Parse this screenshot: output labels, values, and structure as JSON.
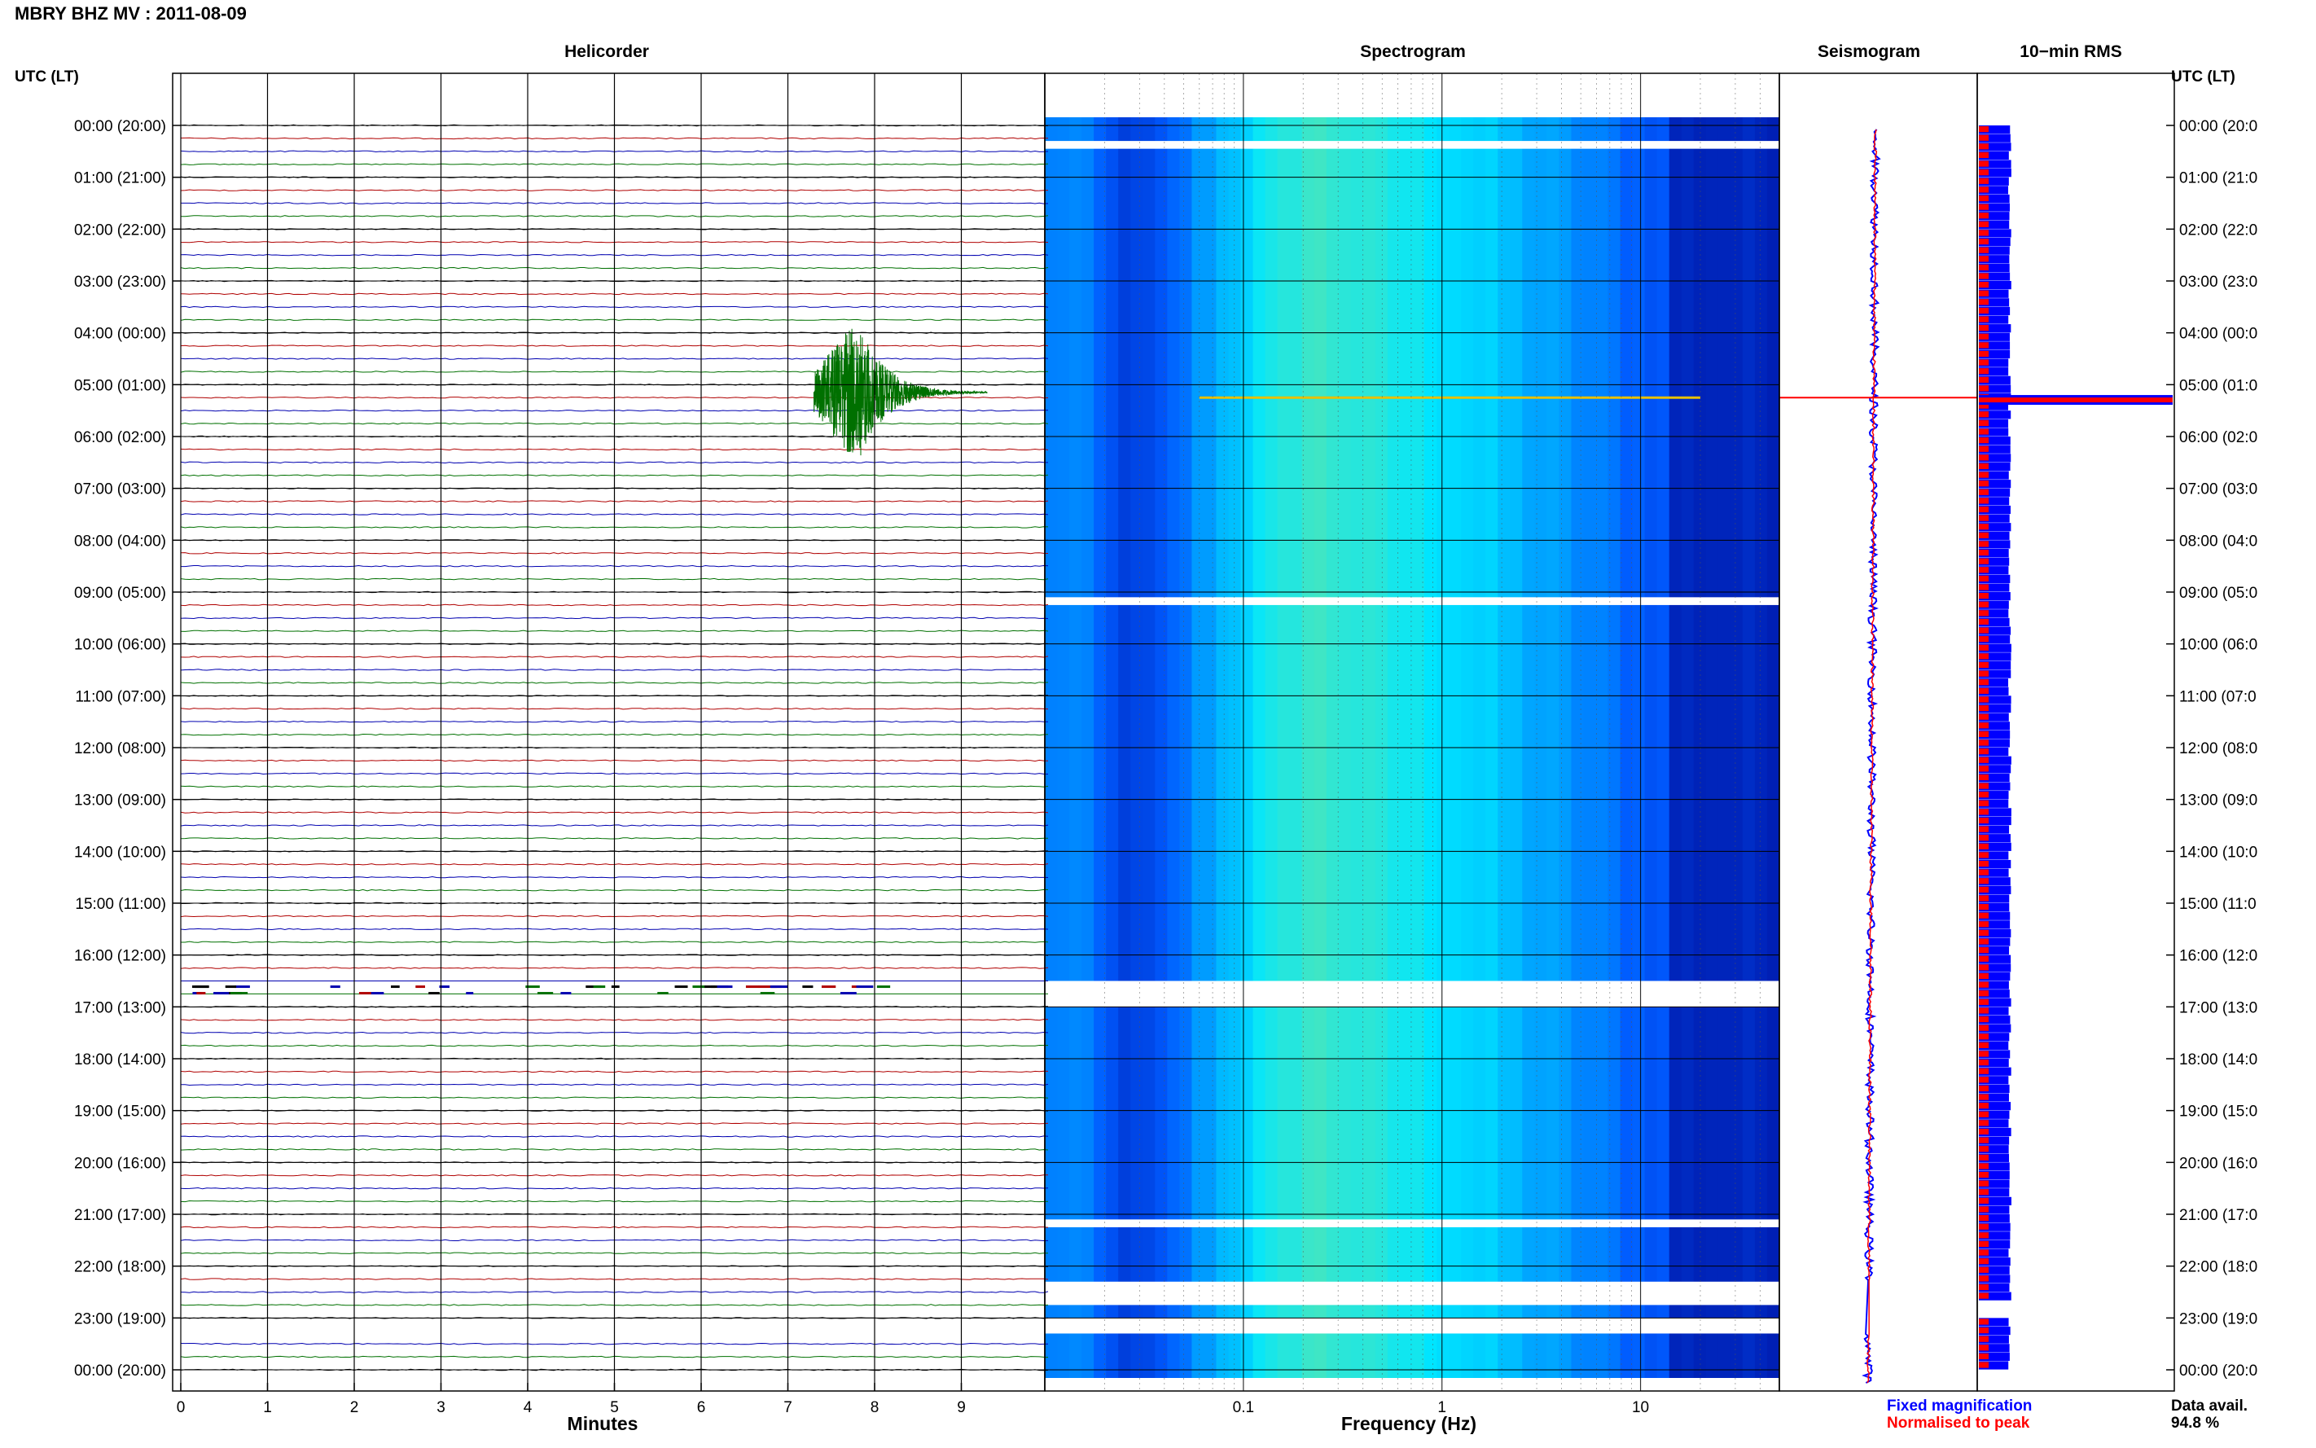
{
  "figure": {
    "title": "MBRY BHZ MV : 2011-08-09"
  },
  "panels": {
    "helicorder": "Helicorder",
    "spectrogram": "Spectrogram",
    "seismogram": "Seismogram",
    "rms": "10−min RMS"
  },
  "axes": {
    "left_header": "UTC (LT)",
    "right_header": "UTC (LT)",
    "helicorder_xlabel": "Minutes",
    "spectrogram_xlabel": "Frequency (Hz)"
  },
  "legend": {
    "fixed": "Fixed magnification",
    "normalised": "Normalised to peak",
    "fixed_color": "#0000ff",
    "normalised_color": "#ff0000"
  },
  "data_avail": {
    "label": "Data avail.",
    "value": "94.8 %"
  },
  "colors": {
    "trace_black": "#000000",
    "trace_red": "#b00000",
    "trace_blue": "#0000b0",
    "trace_green": "#007000",
    "spec_low": "#00007f",
    "spec_mid": "#0080ff",
    "spec_high": "#80ff80"
  },
  "chart_data": [
    {
      "type": "line",
      "name": "helicorder",
      "title": "Helicorder",
      "xlabel": "Minutes",
      "x_ticks": [
        "0",
        "1",
        "2",
        "3",
        "4",
        "5",
        "6",
        "7",
        "8",
        "9"
      ],
      "xlim": [
        0,
        10
      ],
      "y_tick_labels_left": [
        "00:00 (20:00)",
        "01:00 (21:00)",
        "02:00 (22:00)",
        "03:00 (23:00)",
        "04:00 (00:00)",
        "05:00 (01:00)",
        "06:00 (02:00)",
        "07:00 (03:00)",
        "08:00 (04:00)",
        "09:00 (05:00)",
        "10:00 (06:00)",
        "11:00 (07:00)",
        "12:00 (08:00)",
        "13:00 (09:00)",
        "14:00 (10:00)",
        "15:00 (11:00)",
        "16:00 (12:00)",
        "17:00 (13:00)",
        "18:00 (14:00)",
        "19:00 (15:00)",
        "20:00 (16:00)",
        "21:00 (17:00)",
        "22:00 (18:00)",
        "23:00 (19:00)",
        "00:00 (20:00)"
      ],
      "y_tick_labels_right": [
        "00:00 (20:0",
        "01:00 (21:0",
        "02:00 (22:0",
        "03:00 (23:0",
        "04:00 (00:0",
        "05:00 (01:0",
        "06:00 (02:0",
        "07:00 (03:0",
        "08:00 (04:0",
        "09:00 (05:0",
        "10:00 (06:0",
        "11:00 (07:0",
        "12:00 (08:0",
        "13:00 (09:0",
        "14:00 (10:0",
        "15:00 (11:0",
        "16:00 (12:0",
        "17:00 (13:0",
        "18:00 (14:0",
        "19:00 (15:0",
        "20:00 (16:0",
        "21:00 (17:0",
        "22:00 (18:0",
        "23:00 (19:0",
        "00:00 (20:0"
      ],
      "trace_minutes": 10,
      "event": {
        "hour": 5,
        "start_minute": 7.3,
        "peak_minute": 7.8,
        "end_minute": 9.3
      }
    },
    {
      "type": "heatmap",
      "name": "spectrogram",
      "title": "Spectrogram",
      "xlabel": "Frequency (Hz)",
      "x_scale": "log",
      "xlim": [
        0.01,
        50
      ],
      "x_ticks": [
        "0.1",
        "1",
        "10"
      ],
      "x_tick_values": [
        0.1,
        1,
        10
      ],
      "peak_band_hz": [
        0.2,
        0.6
      ],
      "gap_hours": [
        [
          0.3,
          0.45
        ],
        [
          9.1,
          9.25
        ],
        [
          16.5,
          17.0
        ],
        [
          21.1,
          21.25
        ],
        [
          22.3,
          22.75
        ],
        [
          23.0,
          23.3
        ]
      ]
    },
    {
      "type": "line",
      "name": "seismogram",
      "title": "Seismogram",
      "event_hour": 5.2
    },
    {
      "type": "bar",
      "name": "rms",
      "title": "10−min RMS",
      "event_hour": 5.2
    }
  ]
}
